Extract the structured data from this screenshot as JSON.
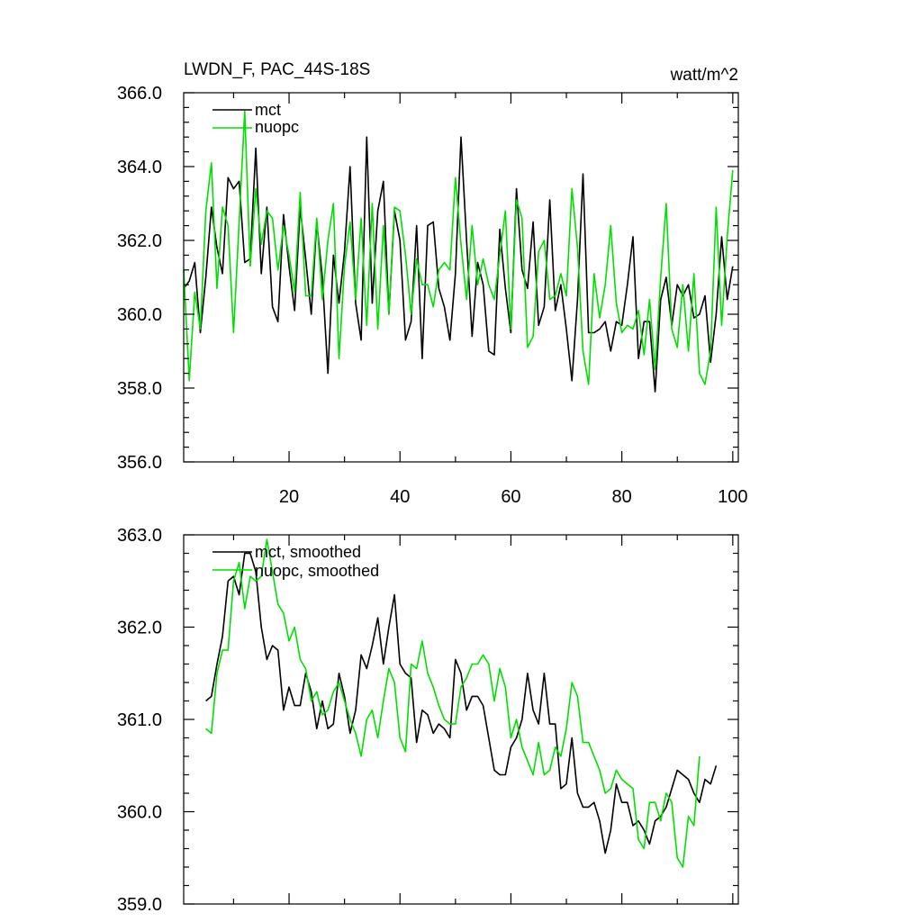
{
  "colors": {
    "mct": "#000000",
    "nuopc": "#00e000"
  },
  "chart_data": [
    {
      "type": "line",
      "title_left": "LWDN_F, PAC_44S-18S",
      "title_right": "watt/m^2",
      "xlim": [
        1,
        101
      ],
      "ylim": [
        356,
        366
      ],
      "xticks": [
        20,
        40,
        60,
        80,
        100
      ],
      "xtick_labels": [
        "20",
        "40",
        "60",
        "80",
        "100"
      ],
      "yticks": [
        356,
        358,
        360,
        362,
        364,
        366
      ],
      "ytick_labels": [
        "356.0",
        "358.0",
        "360.0",
        "362.0",
        "364.0",
        "366.0"
      ],
      "x_start": 1,
      "series": [
        {
          "name": "mct",
          "color": "#000000",
          "values": [
            360.7,
            360.9,
            361.4,
            359.5,
            361.0,
            362.9,
            361.8,
            361.1,
            363.7,
            363.4,
            363.6,
            361.4,
            361.5,
            364.5,
            361.1,
            362.9,
            360.2,
            359.8,
            362.7,
            361.3,
            360.1,
            362.9,
            361.5,
            360.0,
            362.5,
            361.0,
            358.4,
            361.6,
            360.3,
            361.7,
            364.0,
            360.3,
            359.3,
            364.8,
            360.3,
            362.8,
            363.6,
            360.0,
            362.8,
            362.0,
            359.3,
            359.8,
            362.4,
            358.8,
            362.4,
            362.5,
            360.7,
            360.2,
            359.3,
            361.1,
            364.8,
            362.0,
            359.4,
            361.4,
            360.8,
            359.0,
            358.9,
            362.3,
            360.7,
            359.5,
            363.4,
            361.2,
            360.7,
            362.5,
            359.7,
            360.2,
            363.1,
            360.1,
            360.8,
            359.6,
            358.2,
            360.4,
            363.8,
            359.5,
            359.5,
            359.6,
            359.8,
            359.0,
            359.8,
            359.7,
            360.8,
            362.1,
            358.8,
            359.8,
            359.8,
            357.9,
            360.4,
            361.0,
            359.7,
            360.8,
            360.5,
            360.8,
            359.9,
            360.0,
            360.5,
            358.7,
            360.0,
            362.1,
            360.4,
            361.3
          ]
        },
        {
          "name": "nuopc",
          "color": "#00e000",
          "values": [
            361.2,
            358.2,
            360.6,
            359.6,
            362.8,
            364.1,
            360.7,
            362.9,
            362.4,
            359.5,
            362.5,
            365.5,
            361.3,
            363.4,
            361.9,
            362.8,
            362.6,
            361.2,
            362.4,
            361.6,
            360.6,
            363.3,
            360.5,
            360.5,
            362.6,
            360.4,
            362.0,
            363.0,
            358.8,
            361.3,
            362.5,
            360.4,
            362.6,
            359.7,
            363.0,
            359.6,
            362.4,
            360.0,
            362.9,
            362.8,
            361.6,
            360.0,
            361.5,
            360.8,
            360.8,
            360.2,
            361.2,
            361.4,
            361.2,
            363.7,
            361.9,
            360.4,
            362.4,
            360.8,
            361.5,
            360.8,
            360.4,
            361.6,
            362.8,
            359.6,
            363.1,
            362.6,
            359.1,
            359.4,
            361.7,
            362.0,
            360.4,
            360.5,
            361.1,
            360.5,
            363.4,
            361.8,
            359.0,
            358.1,
            361.1,
            359.9,
            360.8,
            362.4,
            360.3,
            359.5,
            359.7,
            359.6,
            360.1,
            358.9,
            360.4,
            358.5,
            361.0,
            363.0,
            359.6,
            359.1,
            360.8,
            359.0,
            361.1,
            358.4,
            358.1,
            359.0,
            362.9,
            359.7,
            362.1,
            363.9
          ]
        }
      ],
      "legend": {
        "placement": "top-left",
        "entries": [
          "mct",
          "nuopc"
        ]
      }
    },
    {
      "type": "line",
      "title_left": "",
      "title_right": "",
      "xlim": [
        1,
        101
      ],
      "ylim": [
        359,
        363
      ],
      "xticks": [
        20,
        40,
        60,
        80,
        100
      ],
      "xtick_labels": [],
      "yticks": [
        359,
        360,
        361,
        362,
        363
      ],
      "ytick_labels": [
        "359.0",
        "360.0",
        "361.0",
        "362.0",
        "363.0"
      ],
      "x_start": 5,
      "series": [
        {
          "name": "mct, smoothed",
          "color": "#000000",
          "values": [
            361.2,
            361.25,
            361.6,
            361.9,
            362.5,
            362.55,
            362.35,
            362.8,
            362.8,
            362.6,
            362.0,
            361.65,
            361.8,
            361.75,
            361.1,
            361.35,
            361.15,
            361.15,
            361.5,
            361.3,
            360.9,
            361.2,
            360.9,
            360.95,
            361.5,
            361.25,
            360.85,
            361.1,
            361.7,
            361.55,
            361.8,
            362.1,
            361.6,
            362.0,
            362.35,
            361.6,
            361.5,
            361.45,
            360.75,
            361.1,
            361.05,
            360.85,
            360.95,
            360.9,
            360.8,
            361.65,
            361.5,
            361.1,
            361.25,
            361.25,
            361.15,
            360.8,
            360.45,
            360.4,
            360.4,
            360.7,
            360.8,
            361.0,
            361.5,
            361.1,
            360.95,
            361.5,
            360.95,
            360.95,
            360.25,
            360.3,
            360.8,
            360.2,
            360.05,
            360.05,
            360.1,
            359.9,
            359.55,
            359.8,
            360.3,
            360.1,
            360.1,
            359.85,
            359.9,
            359.8,
            359.65,
            359.9,
            359.95,
            360.05,
            360.25,
            360.45,
            360.4,
            360.35,
            360.2,
            360.1,
            360.35,
            360.3,
            360.5
          ]
        },
        {
          "name": "nuopc, smoothed",
          "color": "#00e000",
          "values": [
            360.9,
            360.85,
            361.5,
            361.75,
            361.75,
            362.5,
            362.7,
            362.2,
            362.55,
            362.5,
            362.55,
            362.95,
            362.6,
            362.25,
            362.15,
            361.85,
            362.0,
            361.65,
            361.55,
            361.2,
            361.3,
            361.05,
            361.1,
            361.3,
            361.4,
            361.2,
            361.0,
            360.85,
            360.6,
            361.0,
            361.1,
            360.8,
            361.2,
            361.55,
            361.4,
            360.8,
            360.65,
            361.6,
            361.55,
            361.85,
            361.5,
            361.35,
            361.15,
            361.0,
            360.95,
            360.95,
            361.35,
            361.45,
            361.6,
            361.6,
            361.7,
            361.6,
            361.2,
            361.55,
            361.35,
            360.8,
            361.0,
            360.7,
            360.55,
            360.4,
            360.75,
            360.4,
            360.45,
            360.7,
            360.6,
            360.9,
            361.4,
            361.25,
            360.75,
            360.75,
            360.6,
            360.45,
            360.2,
            360.25,
            360.45,
            360.35,
            360.3,
            360.25,
            359.7,
            359.6,
            360.1,
            360.1,
            359.9,
            360.2,
            360.1,
            359.5,
            359.4,
            359.95,
            359.85,
            360.6
          ]
        }
      ],
      "legend": {
        "placement": "top-left",
        "entries": [
          "mct, smoothed",
          "nuopc, smoothed"
        ]
      }
    }
  ]
}
